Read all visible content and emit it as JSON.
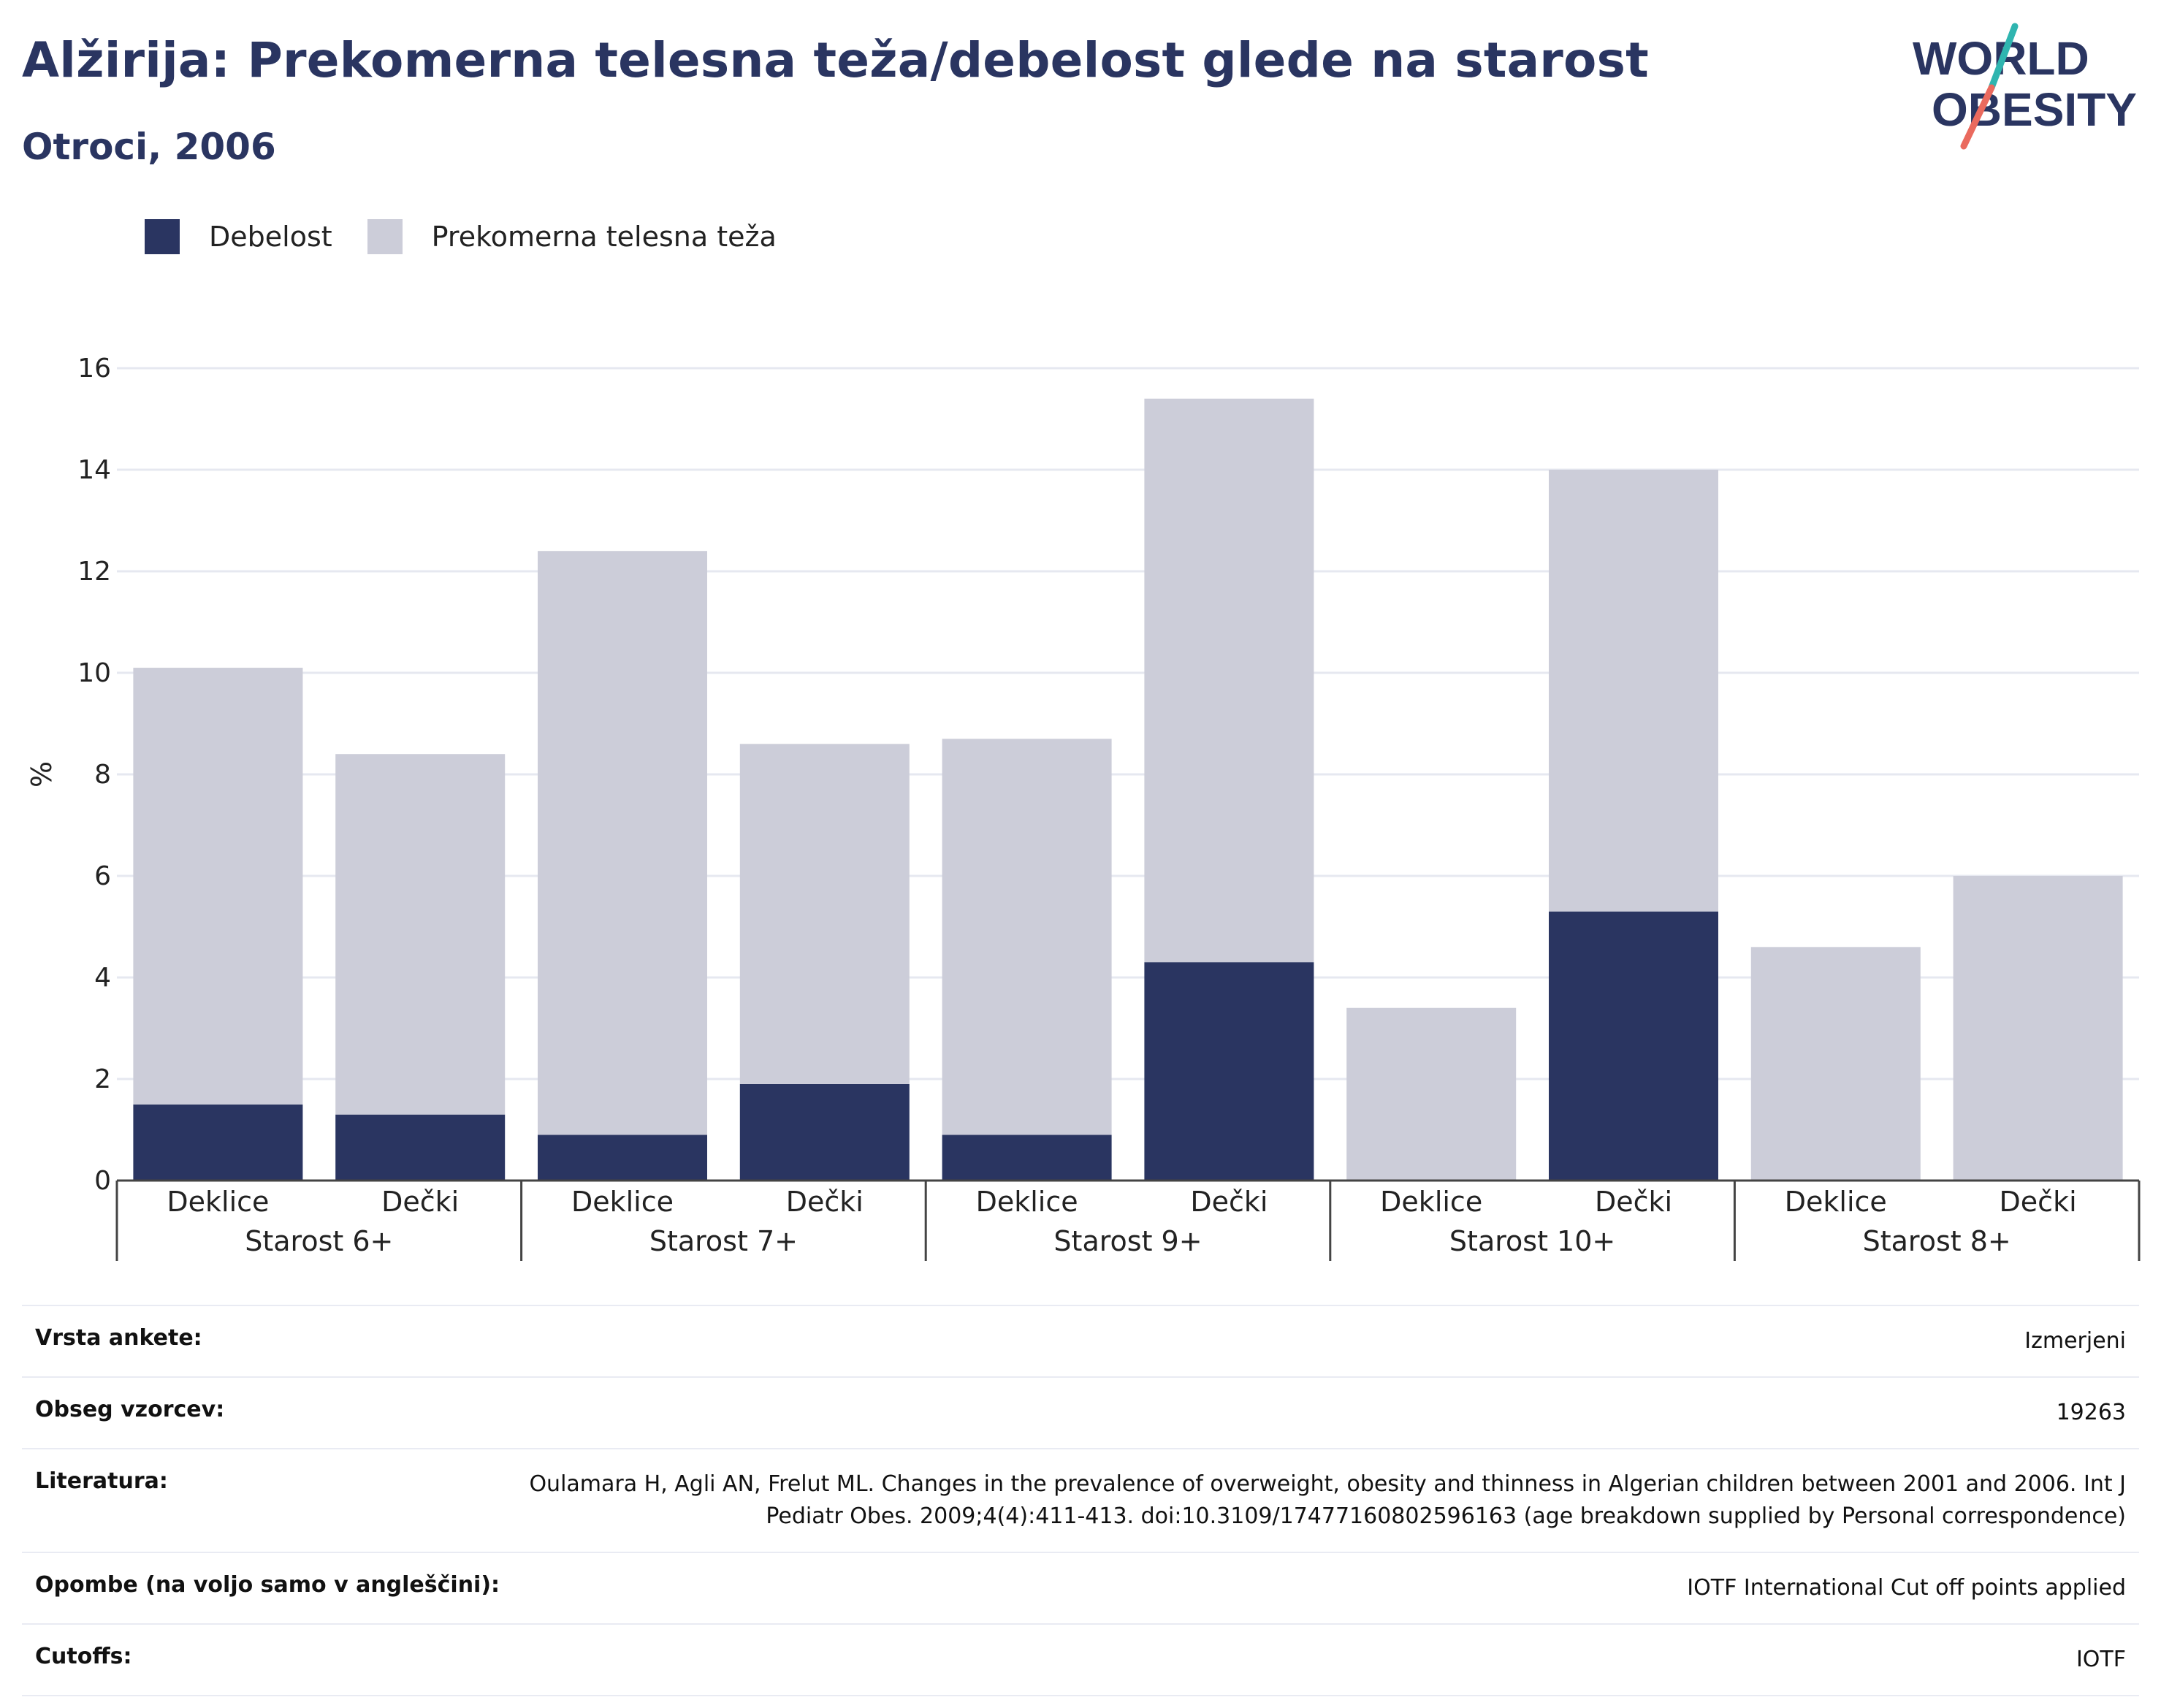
{
  "header": {
    "title": "Alžirija: Prekomerna telesna teža/debelost glede na starost",
    "subtitle": "Otroci, 2006"
  },
  "logo": {
    "line1": "WORLD",
    "line2": "OBESITY"
  },
  "legend": [
    {
      "label": "Debelost",
      "color": "#2a3561"
    },
    {
      "label": "Prekomerna telesna teža",
      "color": "#cccdd9"
    }
  ],
  "chart_data": {
    "type": "bar",
    "stacked": true,
    "ylabel": "%",
    "ylim": [
      0,
      16
    ],
    "yticks": [
      0,
      2,
      4,
      6,
      8,
      10,
      12,
      14,
      16
    ],
    "grid": true,
    "legend_position": "top-left",
    "groups": [
      {
        "label": "Starost 6+",
        "categories": [
          "Deklice",
          "Dečki"
        ]
      },
      {
        "label": "Starost 7+",
        "categories": [
          "Deklice",
          "Dečki"
        ]
      },
      {
        "label": "Starost 9+",
        "categories": [
          "Deklice",
          "Dečki"
        ]
      },
      {
        "label": "Starost 10+",
        "categories": [
          "Deklice",
          "Dečki"
        ]
      },
      {
        "label": "Starost 8+",
        "categories": [
          "Deklice",
          "Dečki"
        ]
      }
    ],
    "series": [
      {
        "name": "Debelost",
        "color": "#2a3561",
        "values": [
          1.5,
          1.3,
          0.9,
          1.9,
          0.9,
          4.3,
          0,
          5.3,
          0,
          0
        ]
      },
      {
        "name": "Prekomerna telesna teža",
        "color": "#cccdd9",
        "values": [
          8.6,
          7.1,
          11.5,
          6.7,
          7.8,
          11.1,
          3.4,
          8.7,
          4.6,
          6.0
        ]
      }
    ]
  },
  "info": [
    {
      "key": "Vrsta ankete:",
      "value": "Izmerjeni"
    },
    {
      "key": "Obseg vzorcev:",
      "value": "19263"
    },
    {
      "key": "Literatura:",
      "value": "Oulamara H, Agli AN, Frelut ML. Changes in the prevalence of overweight, obesity and thinness in Algerian children between 2001 and 2006. Int J Pediatr Obes. 2009;4(4):411-413. doi:10.3109/17477160802596163 (age breakdown supplied by Personal correspondence)"
    },
    {
      "key": "Opombe (na voljo samo v angleščini):",
      "value": "IOTF International Cut off points applied"
    },
    {
      "key": "Cutoffs:",
      "value": "IOTF"
    }
  ]
}
